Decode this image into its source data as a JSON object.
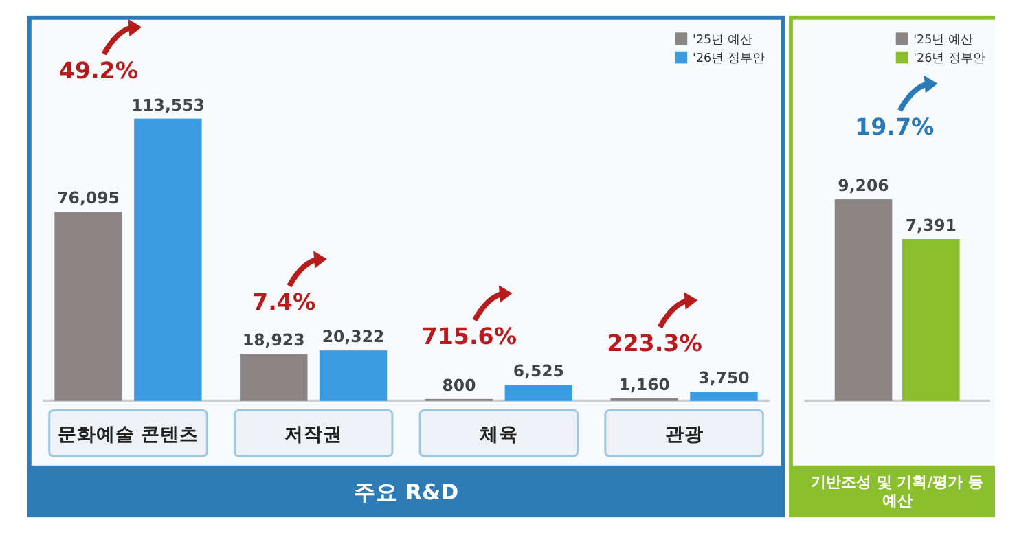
{
  "chart_data": [
    {
      "type": "bar",
      "xlabel": "주요 R&D",
      "categories": [
        "문화예술 콘텐츠",
        "저작권",
        "체육",
        "관광"
      ],
      "series": [
        {
          "name": "'25년 예산",
          "color": "#8a8584",
          "values": [
            76095,
            18923,
            800,
            1160
          ],
          "value_labels": [
            "76,095",
            "18,923",
            "800",
            "1,160"
          ]
        },
        {
          "name": "'26년 정부안",
          "color": "#3a9be0",
          "values": [
            113553,
            20322,
            6525,
            3750
          ],
          "value_labels": [
            "113,553",
            "20,322",
            "6,525",
            "3,750"
          ]
        }
      ],
      "legend": "top right",
      "annotations": [
        {
          "text": "49.2%",
          "x": "문화예술 콘텐츠",
          "y": 113553
        },
        {
          "text": "7.4%",
          "x": "저작권",
          "y": 20322
        },
        {
          "text": "715.6%",
          "x": "체육",
          "y": 6525
        },
        {
          "text": "223.3%",
          "x": "관광",
          "y": 3750
        }
      ]
    },
    {
      "type": "bar",
      "xlabel": "기반조성 및 기획/평가 등 예산",
      "categories": [
        null
      ],
      "series": [
        {
          "name": "'25년 예산",
          "color": "#8a8584",
          "values": [
            9206
          ],
          "value_labels": [
            "9,206"
          ]
        },
        {
          "name": "'26년 정부안",
          "color": "#8cbf2e",
          "values": [
            7391
          ],
          "value_labels": [
            "7,391"
          ]
        }
      ],
      "legend": "top right",
      "annotations": [
        "19.7%"
      ]
    }
  ]
}
